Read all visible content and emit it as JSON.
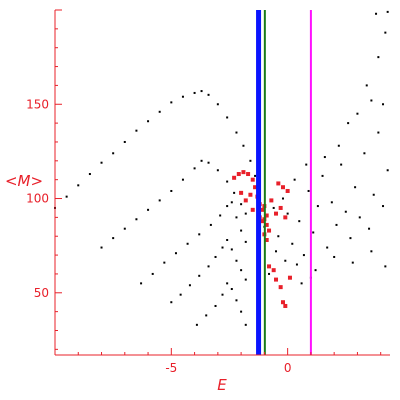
{
  "chart_data": {
    "type": "scatter",
    "title": "",
    "xlabel": "E",
    "ylabel": "<M>",
    "xlim": [
      -10.0,
      4.4
    ],
    "ylim": [
      17,
      200
    ],
    "x_ticks": [
      -5,
      0
    ],
    "y_ticks": [
      50,
      100,
      150
    ],
    "x_tick_labels": [
      "-5",
      "0"
    ],
    "y_tick_labels": [
      "50",
      "100",
      "150"
    ],
    "grid": false,
    "legend": "none",
    "axis_color": "#e8202a",
    "series": [
      {
        "kind": "curve-points",
        "color": "#000000",
        "points": [
          [
            -10.0,
            95
          ],
          [
            -9.5,
            101
          ],
          [
            -9.0,
            107
          ],
          [
            -8.5,
            113
          ],
          [
            -8.0,
            119
          ],
          [
            -7.5,
            124
          ],
          [
            -7.0,
            130
          ],
          [
            -6.5,
            136
          ],
          [
            -6.0,
            141
          ],
          [
            -5.5,
            146
          ],
          [
            -5.0,
            151
          ],
          [
            -4.5,
            154
          ],
          [
            -4.0,
            156
          ],
          [
            -3.7,
            157
          ],
          [
            -3.4,
            155
          ],
          [
            -3.0,
            150
          ],
          [
            -2.6,
            143
          ],
          [
            -2.2,
            135
          ],
          [
            -1.9,
            128
          ],
          [
            -1.6,
            120
          ],
          [
            -1.4,
            112
          ],
          [
            -8.0,
            74
          ],
          [
            -7.5,
            79
          ],
          [
            -7.0,
            84
          ],
          [
            -6.5,
            89
          ],
          [
            -6.0,
            94
          ],
          [
            -5.5,
            99
          ],
          [
            -5.0,
            104
          ],
          [
            -4.5,
            110
          ],
          [
            -4.0,
            116
          ],
          [
            -3.7,
            120
          ],
          [
            -3.4,
            119
          ],
          [
            -3.0,
            115
          ],
          [
            -2.6,
            109
          ],
          [
            -2.3,
            103
          ],
          [
            -2.0,
            97
          ],
          [
            -1.8,
            92
          ],
          [
            -6.3,
            55
          ],
          [
            -5.8,
            60
          ],
          [
            -5.3,
            66
          ],
          [
            -4.8,
            71
          ],
          [
            -4.3,
            76
          ],
          [
            -3.8,
            81
          ],
          [
            -3.3,
            86
          ],
          [
            -2.9,
            91
          ],
          [
            -2.6,
            96
          ],
          [
            -2.4,
            98
          ],
          [
            -2.2,
            90
          ],
          [
            -2.0,
            83
          ],
          [
            -1.8,
            77
          ],
          [
            -5.0,
            45
          ],
          [
            -4.6,
            49
          ],
          [
            -4.2,
            54
          ],
          [
            -3.8,
            59
          ],
          [
            -3.4,
            64
          ],
          [
            -3.1,
            69
          ],
          [
            -2.8,
            74
          ],
          [
            -2.6,
            78
          ],
          [
            -2.4,
            73
          ],
          [
            -2.2,
            67
          ],
          [
            -2.0,
            62
          ],
          [
            -1.8,
            57
          ],
          [
            -3.9,
            33
          ],
          [
            -3.5,
            38
          ],
          [
            -3.1,
            43
          ],
          [
            -2.8,
            49
          ],
          [
            -2.6,
            55
          ],
          [
            -2.4,
            52
          ],
          [
            -2.2,
            46
          ],
          [
            -2.0,
            40
          ],
          [
            -1.8,
            33
          ]
        ]
      },
      {
        "kind": "scatter-points",
        "color": "#000000",
        "points": [
          [
            -1.0,
            85
          ],
          [
            -0.8,
            60
          ],
          [
            -0.6,
            95
          ],
          [
            -0.4,
            80
          ],
          [
            -0.2,
            100
          ],
          [
            0.0,
            92
          ],
          [
            0.2,
            76
          ],
          [
            0.3,
            110
          ],
          [
            0.5,
            88
          ],
          [
            0.7,
            70
          ],
          [
            0.9,
            104
          ],
          [
            1.1,
            82
          ],
          [
            1.3,
            96
          ],
          [
            1.5,
            112
          ],
          [
            1.7,
            74
          ],
          [
            1.9,
            98
          ],
          [
            2.1,
            86
          ],
          [
            2.3,
            118
          ],
          [
            2.5,
            93
          ],
          [
            2.7,
            79
          ],
          [
            2.9,
            106
          ],
          [
            3.1,
            90
          ],
          [
            3.3,
            124
          ],
          [
            3.5,
            84
          ],
          [
            3.7,
            102
          ],
          [
            3.9,
            135
          ],
          [
            4.1,
            96
          ],
          [
            4.3,
            115
          ],
          [
            0.4,
            65
          ],
          [
            1.2,
            62
          ],
          [
            2.0,
            69
          ],
          [
            2.8,
            66
          ],
          [
            3.6,
            72
          ],
          [
            4.2,
            64
          ],
          [
            0.6,
            55
          ],
          [
            1.0,
            58
          ],
          [
            3.4,
            160
          ],
          [
            3.9,
            175
          ],
          [
            4.1,
            150
          ],
          [
            4.2,
            188
          ],
          [
            3.8,
            198
          ],
          [
            4.3,
            199
          ],
          [
            2.6,
            140
          ],
          [
            3.0,
            145
          ],
          [
            3.6,
            152
          ],
          [
            -0.5,
            72
          ],
          [
            -0.1,
            67
          ],
          [
            0.8,
            118
          ],
          [
            1.6,
            122
          ],
          [
            2.2,
            128
          ]
        ]
      },
      {
        "kind": "scatter-points",
        "color": "#e8202a",
        "points": [
          [
            -2.3,
            111
          ],
          [
            -2.1,
            113
          ],
          [
            -1.9,
            114
          ],
          [
            -1.7,
            113
          ],
          [
            -1.5,
            110
          ],
          [
            -1.4,
            106
          ],
          [
            -1.3,
            101
          ],
          [
            -1.2,
            97
          ],
          [
            -1.1,
            94
          ],
          [
            -1.0,
            96
          ],
          [
            -0.9,
            91
          ],
          [
            -1.1,
            88
          ],
          [
            -0.9,
            86
          ],
          [
            -0.8,
            83
          ],
          [
            -1.0,
            81
          ],
          [
            -0.9,
            78
          ],
          [
            -2.0,
            103
          ],
          [
            -1.8,
            99
          ],
          [
            -1.6,
            102
          ],
          [
            -1.5,
            94
          ],
          [
            -0.7,
            99
          ],
          [
            -0.5,
            92
          ],
          [
            -0.3,
            95
          ],
          [
            -0.1,
            90
          ],
          [
            -0.4,
            108
          ],
          [
            -0.2,
            106
          ],
          [
            0.0,
            104
          ],
          [
            -0.6,
            62
          ],
          [
            -0.8,
            64
          ],
          [
            -0.5,
            57
          ],
          [
            -0.3,
            53
          ],
          [
            0.1,
            58
          ],
          [
            -0.2,
            45
          ],
          [
            -0.1,
            43
          ],
          [
            -1.2,
            90
          ],
          [
            -1.0,
            89
          ]
        ]
      }
    ],
    "reference_lines": [
      {
        "x": -1.25,
        "color": "#0a14ff"
      },
      {
        "x": -0.98,
        "color": "#1a7a1a"
      },
      {
        "x": 1.0,
        "color": "#ff10ff"
      }
    ]
  }
}
